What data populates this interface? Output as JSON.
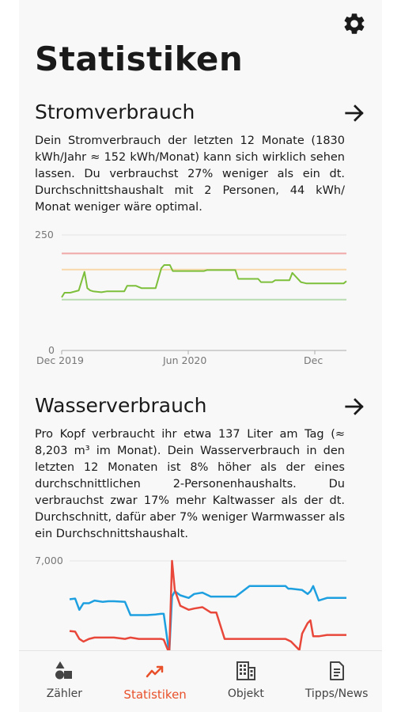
{
  "header": {
    "title": "Statistiken",
    "settings_icon": "gear-icon"
  },
  "power": {
    "title": "Stromverbrauch",
    "arrow_icon": "arrow-right-icon",
    "text": "Dein Stromverbrauch der letzten 12 Monate (1830 kWh/Jahr ≈ 152 kWh/Monat) kann sich wirklich sehen lassen. Du verbrauchst 27% weniger als ein dt. Durchschnittshaushalt mit 2 Personen, 44 kWh/ Monat weniger wäre optimal."
  },
  "water": {
    "title": "Wasserverbrauch",
    "arrow_icon": "arrow-right-icon",
    "text": "Pro Kopf verbraucht ihr etwa 137 Liter am Tag (≈ 8,203 m³ im Monat). Dein Wasserverbrauch in den letzten 12 Monaten ist 8% höher als der eines durchschnittlichen 2-Personenhaushalts. Du verbrauchst zwar 17% mehr Kaltwasser als der dt. Durchschnitt, dafür aber 7% weniger Warmwasser als ein Durchschnittshaushalt."
  },
  "tabs": [
    {
      "label": "Zähler",
      "icon": "shapes-icon",
      "active": false
    },
    {
      "label": "Statistiken",
      "icon": "trend-chart-icon",
      "active": true
    },
    {
      "label": "Objekt",
      "icon": "building-icon",
      "active": false
    },
    {
      "label": "Tipps/News",
      "icon": "document-icon",
      "active": false
    }
  ],
  "colors": {
    "accent": "#e8502a",
    "power_line": "#7dbf3b",
    "water_cold": "#1ea0e0",
    "water_warm": "#e8473a"
  },
  "chart_data": [
    {
      "type": "line",
      "ylim": [
        0,
        250
      ],
      "yticks": [
        "250",
        "0"
      ],
      "xticks": [
        "Dec 2019",
        "Jun 2020",
        "Dec"
      ],
      "reference_lines": [
        {
          "value": 210,
          "color": "#f0a8a8"
        },
        {
          "value": 175,
          "color": "#f8d8a8"
        },
        {
          "value": 110,
          "color": "#b8dcb0"
        }
      ],
      "series": [
        {
          "color": "#7dbf3b",
          "x": [
            0,
            0.01,
            0.03,
            0.06,
            0.08,
            0.09,
            0.1,
            0.11,
            0.14,
            0.16,
            0.17,
            0.22,
            0.23,
            0.26,
            0.28,
            0.28,
            0.33,
            0.35,
            0.36,
            0.38,
            0.39,
            0.41,
            0.44,
            0.5,
            0.51,
            0.55,
            0.61,
            0.62,
            0.69,
            0.7,
            0.74,
            0.75,
            0.8,
            0.81,
            0.84,
            0.86,
            0.9,
            0.94,
            0.99,
            1.0
          ],
          "values": [
            115,
            125,
            125,
            130,
            170,
            135,
            130,
            128,
            126,
            128,
            128,
            128,
            140,
            140,
            135,
            135,
            135,
            178,
            185,
            185,
            172,
            172,
            172,
            172,
            174,
            174,
            174,
            155,
            155,
            148,
            148,
            152,
            152,
            168,
            148,
            145,
            145,
            145,
            145,
            150
          ]
        }
      ]
    },
    {
      "type": "line",
      "ylim": [
        0,
        7000
      ],
      "yticks": [
        "7,000"
      ],
      "series": [
        {
          "color": "#1ea0e0",
          "x": [
            0,
            0.02,
            0.035,
            0.05,
            0.07,
            0.09,
            0.12,
            0.14,
            0.16,
            0.2,
            0.22,
            0.25,
            0.28,
            0.31,
            0.33,
            0.34,
            0.36,
            0.37,
            0.38,
            0.4,
            0.43,
            0.45,
            0.48,
            0.51,
            0.53,
            0.6,
            0.65,
            0.69,
            0.71,
            0.76,
            0.78,
            0.79,
            0.8,
            0.84,
            0.86,
            0.87,
            0.88,
            0.9,
            0.93,
            0.97,
            1.0
          ],
          "values": [
            4100,
            4150,
            3300,
            3800,
            3800,
            4000,
            3900,
            3950,
            3950,
            3900,
            2900,
            2900,
            2900,
            2950,
            3000,
            3000,
            0,
            4300,
            4700,
            4400,
            4200,
            4500,
            4600,
            4300,
            4300,
            4300,
            5100,
            5100,
            5100,
            5100,
            5100,
            4900,
            4900,
            4800,
            4500,
            4700,
            5100,
            4000,
            4200,
            4200,
            4200
          ]
        },
        {
          "color": "#e8473a",
          "x": [
            0,
            0.02,
            0.035,
            0.05,
            0.07,
            0.09,
            0.12,
            0.14,
            0.16,
            0.2,
            0.22,
            0.25,
            0.28,
            0.31,
            0.33,
            0.34,
            0.36,
            0.37,
            0.38,
            0.4,
            0.43,
            0.45,
            0.48,
            0.51,
            0.53,
            0.56,
            0.6,
            0.65,
            0.69,
            0.71,
            0.76,
            0.78,
            0.79,
            0.8,
            0.83,
            0.84,
            0.86,
            0.87,
            0.88,
            0.9,
            0.93,
            0.97,
            1.0
          ],
          "values": [
            1700,
            1650,
            1100,
            900,
            1100,
            1200,
            1200,
            1200,
            1200,
            1100,
            1200,
            1100,
            1100,
            1100,
            1100,
            1050,
            0,
            7000,
            4800,
            3600,
            3300,
            3400,
            3500,
            3100,
            3100,
            1100,
            1100,
            1100,
            1100,
            1100,
            1100,
            1100,
            1000,
            900,
            250,
            1500,
            2300,
            2500,
            1300,
            1300,
            1400,
            1400,
            1400
          ]
        }
      ]
    }
  ]
}
